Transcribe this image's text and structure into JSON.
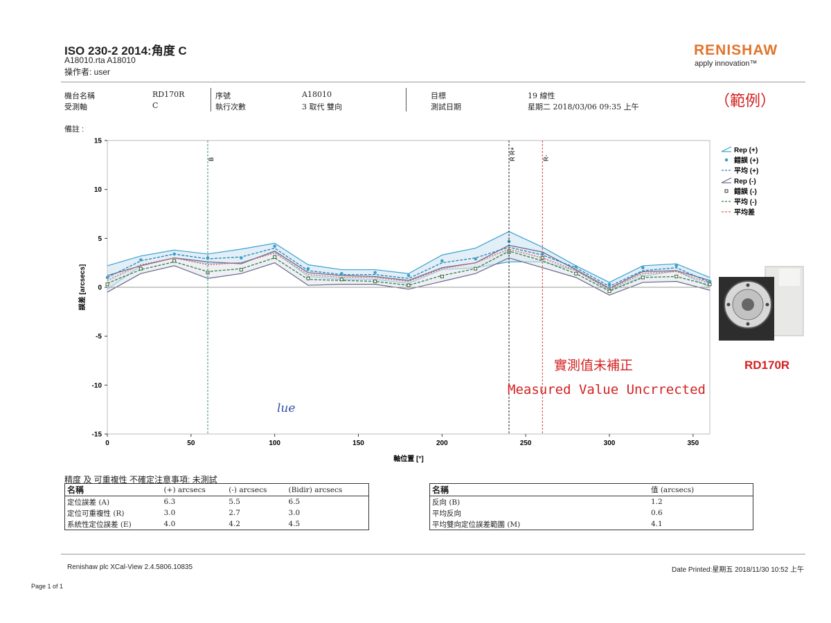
{
  "header": {
    "title": "ISO 230-2 2014:角度 C",
    "file_line": "A18010.rta A18010",
    "operator_line": "操作者: user",
    "logo_text": "RENISHAW",
    "tagline": "apply innovation™",
    "example_label": "（範例）"
  },
  "info": {
    "machine_label": "機台名稱",
    "machine_value": "RD170R",
    "axis_label": "受測軸",
    "axis_value": "C",
    "serial_label": "序號",
    "serial_value": "A18010",
    "runs_label": "執行次數",
    "runs_value": "3 取代 雙向",
    "target_label": "目標",
    "target_value": "19 線性",
    "date_label": "測試日期",
    "date_value": "星期二 2018/03/06 09:35 上午",
    "remarks_label": "備註 :"
  },
  "annotations": {
    "cn_text": "實測值未補正",
    "en_text": "Measured Value Uncrrected",
    "handwriting": "lue",
    "product_label": "RD170R"
  },
  "chart_data": {
    "type": "line",
    "xlabel": "軸位置 [°]",
    "ylabel": "誤差 [arcsecs]",
    "xlim": [
      0,
      360
    ],
    "ylim": [
      -15,
      15
    ],
    "xticks": [
      0,
      50,
      100,
      150,
      200,
      250,
      300,
      350
    ],
    "yticks": [
      15,
      10,
      5,
      0,
      -5,
      -10,
      -15
    ],
    "grid": false,
    "legend_position": "top-right",
    "markers": [
      {
        "label": "B",
        "x": 60
      },
      {
        "label": "R R+",
        "x": 240
      },
      {
        "label": "R-",
        "x": 260
      }
    ],
    "x": [
      0,
      20,
      40,
      60,
      80,
      100,
      120,
      140,
      160,
      180,
      200,
      220,
      240,
      260,
      280,
      300,
      320,
      340,
      360
    ],
    "series": [
      {
        "name": "Rep (+)",
        "upper": [
          2.2,
          3.2,
          3.8,
          3.4,
          3.9,
          4.5,
          2.3,
          1.8,
          1.8,
          1.4,
          3.3,
          4.0,
          5.7,
          4.1,
          2.2,
          0.5,
          2.2,
          2.4,
          1.0
        ],
        "lower": [
          -0.2,
          2.2,
          3.0,
          2.4,
          2.5,
          3.6,
          1.1,
          0.8,
          0.8,
          0.4,
          1.8,
          2.0,
          2.6,
          2.6,
          1.7,
          -0.3,
          1.1,
          1.7,
          0.0
        ]
      },
      {
        "name": "錯誤 (+)",
        "values": [
          1.0,
          2.8,
          3.4,
          3.0,
          3.0,
          4.2,
          1.9,
          1.4,
          1.5,
          1.2,
          2.7,
          2.9,
          4.7,
          3.4,
          2.1,
          0.3,
          2.0,
          2.2,
          0.6
        ]
      },
      {
        "name": "平均 (+)",
        "values": [
          1.0,
          2.7,
          3.4,
          2.9,
          3.1,
          4.0,
          1.7,
          1.3,
          1.3,
          0.9,
          2.5,
          3.0,
          4.1,
          3.3,
          2.0,
          0.1,
          1.7,
          2.0,
          0.5
        ]
      },
      {
        "name": "Rep (-)",
        "upper": [
          1.2,
          2.2,
          3.0,
          2.6,
          2.4,
          3.7,
          1.5,
          1.2,
          1.1,
          0.7,
          2.0,
          2.5,
          4.3,
          3.6,
          1.8,
          -0.1,
          1.6,
          1.7,
          0.7
        ],
        "lower": [
          -0.5,
          1.4,
          2.2,
          0.9,
          1.4,
          2.5,
          0.2,
          0.3,
          0.3,
          -0.2,
          0.6,
          1.4,
          3.0,
          2.0,
          1.0,
          -0.8,
          0.5,
          0.6,
          -0.3
        ]
      },
      {
        "name": "錯誤 (-)",
        "values": [
          0.3,
          1.9,
          2.7,
          1.5,
          1.8,
          3.1,
          0.9,
          0.8,
          0.6,
          0.2,
          1.1,
          1.9,
          3.6,
          3.0,
          1.4,
          -0.4,
          1.0,
          1.1,
          0.3
        ]
      },
      {
        "name": "平均 (-)",
        "values": [
          0.4,
          1.8,
          2.6,
          1.6,
          1.9,
          3.0,
          0.8,
          0.7,
          0.6,
          0.2,
          1.2,
          1.9,
          3.7,
          2.7,
          1.4,
          -0.4,
          1.0,
          1.1,
          0.2
        ]
      },
      {
        "name": "平均差",
        "values": [
          0.7,
          2.3,
          3.0,
          2.3,
          2.5,
          3.5,
          1.3,
          1.0,
          1.0,
          0.6,
          1.9,
          2.5,
          3.9,
          3.0,
          1.7,
          -0.2,
          1.4,
          1.6,
          0.4
        ]
      }
    ],
    "colors": {
      "rep_pos": "#3aa0d0",
      "rep_neg": "#666688",
      "mean_pos": "#2a7fb5",
      "mean_neg": "#2f7f3f",
      "mean_diff": "#e06050",
      "band": "#cfe4f1"
    }
  },
  "results": {
    "caption": "精度 及 可重複性 不確定注意事項: 未測試",
    "left": {
      "headers": [
        "名稱",
        "(+) arcsecs",
        "(-) arcsecs",
        "(Bidir) arcsecs"
      ],
      "rows": [
        [
          "定位誤差 (A)",
          "6.3",
          "5.5",
          "6.5"
        ],
        [
          "定位可重複性 (R)",
          "3.0",
          "2.7",
          "3.0"
        ],
        [
          "系統性定位誤差 (E)",
          "4.0",
          "4.2",
          "4.5"
        ]
      ]
    },
    "right": {
      "headers": [
        "名稱",
        "值 (arcsecs)"
      ],
      "rows": [
        [
          "反向 (B)",
          "1.2"
        ],
        [
          "平均反向",
          "0.6"
        ],
        [
          "平均雙向定位誤差範圍 (M)",
          "4.1"
        ]
      ]
    }
  },
  "footer": {
    "software": "Renishaw plc XCal-View 2.4.5806.10835",
    "date_printed": "Date Printed:星期五 2018/11/30 10:52 上午",
    "page": "Page 1 of 1"
  }
}
